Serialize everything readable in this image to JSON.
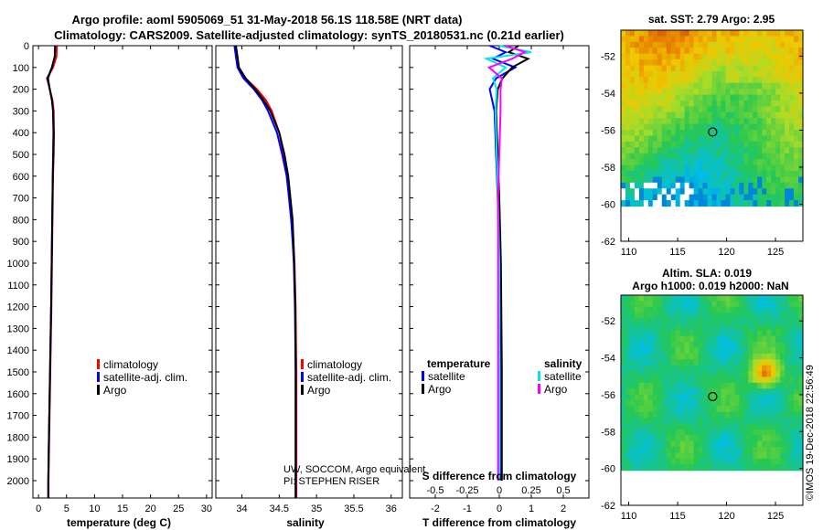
{
  "header": {
    "title_line1": "Argo profile: aoml 5905069_51 31-May-2018 56.1S 118.58E (NRT data)",
    "title_line2": "Climatology: CARS2009. Satellite-adjusted climatology: synTS_20180531.nc (0.21d earlier)"
  },
  "colors": {
    "climatology": "#ff0000",
    "satellite": "#0000ff",
    "argo": "#000000",
    "sal_satellite": "#00e5ee",
    "sal_argo": "#ff00ff"
  },
  "chart_data": [
    {
      "type": "line",
      "panel": "temperature",
      "xlabel": "temperature (deg C)",
      "ylabel": "",
      "xlim": [
        -1,
        31
      ],
      "ylim": [
        2080,
        0
      ],
      "xticks": [
        "0",
        "5",
        "10",
        "15",
        "20",
        "25",
        "30"
      ],
      "xtick_values": [
        0,
        5,
        10,
        15,
        20,
        25,
        30
      ],
      "yticks": [
        "0",
        "100",
        "200",
        "300",
        "400",
        "500",
        "600",
        "700",
        "800",
        "900",
        "1000",
        "1100",
        "1200",
        "1300",
        "1400",
        "1500",
        "1600",
        "1700",
        "1800",
        "1900",
        "2000"
      ],
      "ytick_values": [
        0,
        100,
        200,
        300,
        400,
        500,
        600,
        700,
        800,
        900,
        1000,
        1100,
        1200,
        1300,
        1400,
        1500,
        1600,
        1700,
        1800,
        1900,
        2000
      ],
      "depth": [
        0,
        50,
        100,
        150,
        200,
        250,
        300,
        400,
        500,
        600,
        800,
        1000,
        1200,
        1500,
        1800,
        2000,
        2080
      ],
      "series": [
        {
          "name": "climatology",
          "color": "#ff0000",
          "values": [
            3.3,
            3.2,
            2.6,
            1.5,
            2.0,
            2.5,
            2.7,
            2.75,
            2.7,
            2.6,
            2.5,
            2.4,
            2.3,
            2.1,
            1.9,
            1.8,
            1.8
          ]
        },
        {
          "name": "satellite-adj. clim.",
          "color": "#0000ff",
          "values": [
            3.0,
            2.9,
            2.4,
            1.6,
            2.0,
            2.4,
            2.6,
            2.65,
            2.6,
            2.55,
            2.45,
            2.35,
            2.25,
            2.05,
            1.85,
            1.75,
            1.75
          ]
        },
        {
          "name": "Argo",
          "color": "#000000",
          "values": [
            2.95,
            2.9,
            2.4,
            1.7,
            2.0,
            2.4,
            2.6,
            2.7,
            2.65,
            2.55,
            2.45,
            2.35,
            2.25,
            2.05,
            1.85,
            1.75,
            1.75
          ]
        }
      ],
      "legend": [
        "climatology",
        "satellite-adj. clim.",
        "Argo"
      ]
    },
    {
      "type": "line",
      "panel": "salinity",
      "xlabel": "salinity",
      "xlim": [
        33.65,
        36.15
      ],
      "ylim": [
        2080,
        0
      ],
      "xticks": [
        "34",
        "34.5",
        "35",
        "35.5",
        "36"
      ],
      "xtick_values": [
        34,
        34.5,
        35,
        35.5,
        36
      ],
      "depth": [
        0,
        50,
        100,
        150,
        200,
        250,
        300,
        400,
        500,
        600,
        700,
        800,
        900,
        1000,
        1200,
        1500,
        1800,
        2000,
        2080
      ],
      "series": [
        {
          "name": "climatology",
          "color": "#ff0000",
          "values": [
            33.92,
            33.93,
            33.95,
            34.05,
            34.2,
            34.32,
            34.4,
            34.5,
            34.56,
            34.61,
            34.64,
            34.67,
            34.69,
            34.705,
            34.72,
            34.73,
            34.73,
            34.73,
            34.73
          ]
        },
        {
          "name": "satellite-adj. clim.",
          "color": "#0000ff",
          "values": [
            33.9,
            33.92,
            33.94,
            34.02,
            34.16,
            34.27,
            34.35,
            34.47,
            34.54,
            34.6,
            34.63,
            34.66,
            34.68,
            34.695,
            34.71,
            34.72,
            34.72,
            34.72,
            34.72
          ]
        },
        {
          "name": "Argo",
          "color": "#000000",
          "values": [
            33.92,
            33.94,
            33.96,
            34.05,
            34.18,
            34.29,
            34.38,
            34.5,
            34.57,
            34.62,
            34.65,
            34.68,
            34.69,
            34.7,
            34.715,
            34.72,
            34.72,
            34.72,
            34.72
          ]
        }
      ],
      "legend": [
        "climatology",
        "satellite-adj. clim.",
        "Argo"
      ],
      "annotation": [
        "UW, SOCCOM, Argo equivalent",
        "PI: STEPHEN RISER"
      ]
    },
    {
      "type": "line",
      "panel": "difference",
      "xlabel": "T difference from climatology",
      "xlabel_top": "S difference from climatology",
      "xlim": [
        -2.8,
        2.8
      ],
      "ylim": [
        2080,
        0
      ],
      "xticks": [
        "-2",
        "-1",
        "0",
        "1",
        "2"
      ],
      "xtick_values": [
        -2,
        -1,
        0,
        1,
        2
      ],
      "sticks": [
        "-0.5",
        "-0.25",
        "0",
        "0.25",
        "0.5"
      ],
      "stick_values": [
        -0.5,
        -0.25,
        0,
        0.25,
        0.5
      ],
      "depth": [
        0,
        30,
        60,
        100,
        150,
        200,
        300,
        500,
        700,
        1000,
        1500,
        1800,
        2000
      ],
      "series": [
        {
          "name": "temperature satellite",
          "color": "#0000ff",
          "values": [
            -0.3,
            0.2,
            -0.2,
            0.5,
            -0.1,
            -0.3,
            -0.15,
            -0.1,
            -0.05,
            0,
            0.02,
            0.02,
            0.02
          ]
        },
        {
          "name": "temperature Argo",
          "color": "#000000",
          "values": [
            0.6,
            0.3,
            0.9,
            0.4,
            0.1,
            -0.05,
            -0.1,
            -0.05,
            0,
            0.05,
            0.08,
            0.08,
            0.08
          ]
        },
        {
          "name": "salinity satellite",
          "color": "#00e5ee",
          "values": [
            0,
            0.25,
            -0.1,
            0.05,
            -0.05,
            -0.02,
            -0.03,
            -0.02,
            -0.01,
            0,
            0,
            0,
            0
          ]
        },
        {
          "name": "salinity Argo",
          "color": "#ff00ff",
          "values": [
            0.05,
            0.2,
            0.1,
            -0.08,
            0.02,
            0.01,
            0.01,
            0.0,
            -0.01,
            -0.01,
            -0.01,
            -0.01,
            -0.01
          ]
        }
      ],
      "legend_headers": [
        "temperature",
        "salinity"
      ],
      "legend": [
        "satellite",
        "Argo",
        "satellite",
        "Argo"
      ]
    },
    {
      "type": "heatmap",
      "panel": "sst_map",
      "title": "sat. SST: 2.79  Argo: 2.95",
      "xticks": [
        "110",
        "115",
        "120",
        "125"
      ],
      "xtick_values": [
        110,
        115,
        120,
        125
      ],
      "yticks": [
        "-52",
        "-54",
        "-56",
        "-58",
        "-60",
        "-62"
      ],
      "ytick_values": [
        -52,
        -54,
        -56,
        -58,
        -60,
        -62
      ],
      "xlim": [
        109.2,
        127.8
      ],
      "ylim": [
        -62,
        -50.6
      ],
      "data_lat_min": -60.1,
      "argo_position": [
        118.58,
        -56.1
      ]
    },
    {
      "type": "heatmap",
      "panel": "sla_map",
      "title_line1": "Altim. SLA: 0.019",
      "title_line2": "Argo h1000: 0.019  h2000: NaN",
      "xticks": [
        "110",
        "115",
        "120",
        "125"
      ],
      "xtick_values": [
        110,
        115,
        120,
        125
      ],
      "yticks": [
        "-52",
        "-54",
        "-56",
        "-58",
        "-60",
        "-62"
      ],
      "ytick_values": [
        -52,
        -54,
        -56,
        -58,
        -60,
        -62
      ],
      "xlim": [
        109.2,
        127.8
      ],
      "ylim": [
        -62,
        -50.6
      ],
      "data_lat_min": -60.1,
      "argo_position": [
        118.58,
        -56.1
      ],
      "credit": "©IMOS 19-Dec-2018 22:56:49"
    }
  ]
}
